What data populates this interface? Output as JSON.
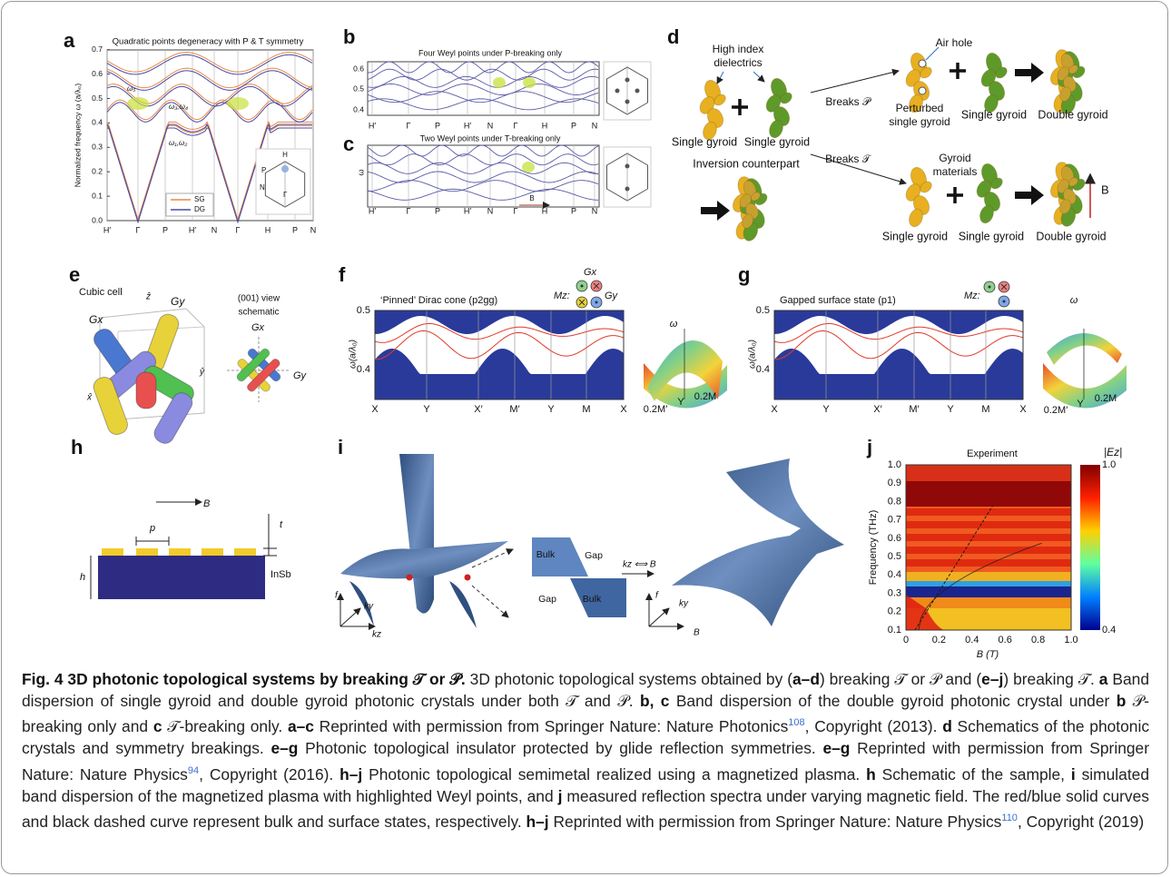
{
  "panel_a": {
    "label": "a",
    "title": "Quadratic points degeneracy with P & T symmetry",
    "y_label": "Normalized frequency ω (a/λ₀)",
    "y_ticks": [
      "0.0",
      "0.1",
      "0.2",
      "0.3",
      "0.4",
      "0.5",
      "0.6",
      "0.7"
    ],
    "x_ticks": [
      "H′",
      "Γ",
      "P",
      "H′",
      "N",
      "Γ",
      "H",
      "P",
      "N"
    ],
    "band_labels": [
      "ω₅",
      "ω₃,ω₄",
      "ω₁,ω₂"
    ],
    "legend": [
      "SG",
      "DG"
    ],
    "bz_labels": [
      "H",
      "P",
      "N",
      "Γ"
    ]
  },
  "panel_b": {
    "label": "b",
    "title": "Four Weyl points under P-breaking only",
    "y_ticks": [
      "0.6",
      "0.5",
      "0.4"
    ],
    "x_ticks": [
      "H′",
      "Γ",
      "P",
      "H′",
      "N",
      "Γ",
      "H",
      "P",
      "N"
    ]
  },
  "panel_c": {
    "label": "c",
    "title": "Two Weyl points under T-breaking only",
    "y_label": "ω",
    "x_ticks": [
      "H′",
      "Γ",
      "P",
      "H′",
      "N",
      "Γ",
      "H",
      "P",
      "N"
    ],
    "field": "B"
  },
  "panel_d": {
    "label": "d",
    "dielectric_lines": [
      "High index",
      "dielectrics"
    ],
    "single_left": "Single gyroid",
    "single_right": "Single gyroid",
    "inversion": "Inversion counterpart",
    "breaks_p": "Breaks 𝒫",
    "breaks_t": "Breaks 𝒯",
    "air_hole": "Air hole",
    "perturbed": [
      "Perturbed",
      "single gyroid"
    ],
    "top_single": "Single gyroid",
    "top_double": "Double gyroid",
    "gyroid_materials": [
      "Gyroid",
      "materials"
    ],
    "bottom": [
      "Single gyroid",
      "Single gyroid",
      "Double gyroid"
    ],
    "field": "B"
  },
  "panel_e": {
    "label": "e",
    "cubic_cell": "Cubic cell",
    "axes": [
      "ẑ",
      "ŷ",
      "x̂"
    ],
    "gx": "Gx",
    "gy": "Gy",
    "view": [
      "(001) view",
      "schematic"
    ],
    "view_gx": "Gx",
    "view_gy": "Gy"
  },
  "panel_f": {
    "label": "f",
    "title": "‘Pinned’ Dirac cone (p2gg)",
    "y_label": "ω(a/λ₀)",
    "y_ticks": [
      "0.5",
      "0.4"
    ],
    "x_ticks": [
      "X",
      "Y",
      "X′",
      "M′",
      "Y",
      "M",
      "X"
    ],
    "gx": "Gx",
    "mz": "Mz:",
    "gy": "Gy",
    "surface_labels": [
      "ω",
      "0.2M′",
      "Y",
      "0.2M"
    ]
  },
  "panel_g": {
    "label": "g",
    "title": "Gapped surface state (p1)",
    "y_label": "ω(a/λ₀)",
    "y_ticks": [
      "0.5",
      "0.4"
    ],
    "x_ticks": [
      "X",
      "Y",
      "X′",
      "M′",
      "Y",
      "M",
      "X"
    ],
    "mz": "Mz:",
    "surface_labels": [
      "ω",
      "0.2M′",
      "Y",
      "0.2M"
    ]
  },
  "panel_h": {
    "label": "h",
    "field": "B",
    "period": "p",
    "thickness": "t",
    "height": "h",
    "material": "InSb"
  },
  "panel_i": {
    "label": "i",
    "left_axes": [
      "f",
      "ky",
      "kz"
    ],
    "regions": [
      "Bulk",
      "Gap",
      "Gap",
      "Bulk"
    ],
    "mapping": "kz ⟺ B",
    "right_axes": [
      "f",
      "ky",
      "B"
    ]
  },
  "panel_j": {
    "label": "j",
    "title": "Experiment",
    "y_label": "Frequency (THz)",
    "y_ticks": [
      "0.1",
      "0.2",
      "0.3",
      "0.4",
      "0.5",
      "0.6",
      "0.7",
      "0.8",
      "0.9",
      "1.0"
    ],
    "x_label": "B (T)",
    "x_ticks": [
      "0",
      "0.2",
      "0.4",
      "0.6",
      "0.8",
      "1.0"
    ],
    "colorbar_label": "|Ez|",
    "colorbar_ticks": [
      "1.0",
      "0.4"
    ]
  },
  "caption": [
    {
      "text": "Fig. 4 3D photonic topological systems by breaking 𝒯 or 𝒫.",
      "style": "bold"
    },
    {
      "text": " 3D photonic topological systems obtained by (",
      "style": "plain"
    },
    {
      "text": "a–d",
      "style": "bold"
    },
    {
      "text": ") breaking 𝒯 or 𝒫 and (",
      "style": "plain"
    },
    {
      "text": "e–j",
      "style": "bold"
    },
    {
      "text": ") breaking 𝒯. ",
      "style": "plain"
    },
    {
      "text": "a",
      "style": "bold"
    },
    {
      "text": " Band dispersion of single gyroid and double gyroid photonic crystals under both 𝒯 and 𝒫. ",
      "style": "plain"
    },
    {
      "text": "b, c",
      "style": "bold"
    },
    {
      "text": " Band dispersion of the double gyroid photonic crystal under ",
      "style": "plain"
    },
    {
      "text": "b",
      "style": "bold"
    },
    {
      "text": " 𝒫-breaking only and ",
      "style": "plain"
    },
    {
      "text": "c",
      "style": "bold"
    },
    {
      "text": " 𝒯-breaking only. ",
      "style": "plain"
    },
    {
      "text": "a–c",
      "style": "bold"
    },
    {
      "text": " Reprinted with permission from Springer Nature: Nature Photonics",
      "style": "plain"
    },
    {
      "text": "108",
      "style": "sup"
    },
    {
      "text": ", Copyright (2013). ",
      "style": "plain"
    },
    {
      "text": "d",
      "style": "bold"
    },
    {
      "text": " Schematics of the photonic crystals and symmetry breakings. ",
      "style": "plain"
    },
    {
      "text": "e–g",
      "style": "bold"
    },
    {
      "text": " Photonic topological insulator protected by glide reflection symmetries. ",
      "style": "plain"
    },
    {
      "text": "e–g",
      "style": "bold"
    },
    {
      "text": " Reprinted with permission from Springer Nature: Nature Physics",
      "style": "plain"
    },
    {
      "text": "94",
      "style": "sup"
    },
    {
      "text": ", Copyright (2016). ",
      "style": "plain"
    },
    {
      "text": "h–j",
      "style": "bold"
    },
    {
      "text": " Photonic topological semimetal realized using a magnetized plasma. ",
      "style": "plain"
    },
    {
      "text": "h",
      "style": "bold"
    },
    {
      "text": " Schematic of the sample, ",
      "style": "plain"
    },
    {
      "text": "i",
      "style": "bold"
    },
    {
      "text": " simulated band dispersion of the magnetized plasma with highlighted Weyl points, and ",
      "style": "plain"
    },
    {
      "text": "j",
      "style": "bold"
    },
    {
      "text": " measured reflection spectra under varying magnetic field. The red/blue solid curves and black dashed curve represent bulk and surface states, respectively. ",
      "style": "plain"
    },
    {
      "text": "h–j",
      "style": "bold"
    },
    {
      "text": " Reprinted with permission from Springer Nature: Nature Physics",
      "style": "plain"
    },
    {
      "text": "110",
      "style": "sup"
    },
    {
      "text": ", Copyright (2019)",
      "style": "plain"
    }
  ]
}
